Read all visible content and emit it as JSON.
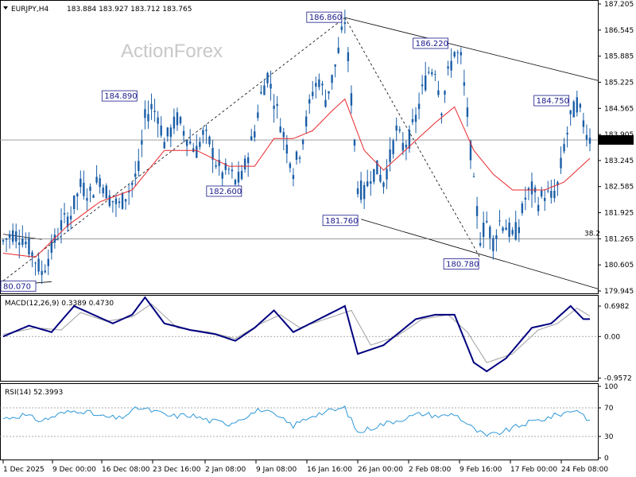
{
  "header": {
    "symbol_tf": "EURJPY,H4",
    "ohlc": "183.884 183.927 183.712 183.765"
  },
  "watermark": "ActionForex",
  "colors": {
    "candles": "#1a5ea8",
    "ma": "#e8282d",
    "macd": "#00007f",
    "signal": "#a0a0a0",
    "rsi": "#2e98d8",
    "lines": "#000000",
    "callout_text": "#1a1a8c"
  },
  "chart_data": [
    {
      "type": "candlestick",
      "title": "EURJPY,H4",
      "ylim": [
        179.945,
        187.205
      ],
      "y_ticks": [
        "187.205",
        "186.545",
        "185.885",
        "185.225",
        "184.565",
        "183.905",
        "183.245",
        "182.585",
        "181.925",
        "181.265",
        "180.605",
        "179.945"
      ],
      "current_price": "183.765",
      "x_ticks": [
        "1 Dec 2025",
        "9 Dec 00:00",
        "16 Dec 08:00",
        "23 Dec 16:00",
        "2 Jan 08:00",
        "9 Jan 08:00",
        "16 Jan 16:00",
        "26 Jan 00:00",
        "2 Feb 08:00",
        "9 Feb 16:00",
        "17 Feb 00:00",
        "24 Feb 08:00"
      ],
      "price_path": [
        [
          0,
          181.2
        ],
        [
          3,
          181.4
        ],
        [
          6,
          181.3
        ],
        [
          9,
          180.9
        ],
        [
          12,
          180.4
        ],
        [
          15,
          181.0
        ],
        [
          18,
          181.6
        ],
        [
          21,
          181.9
        ],
        [
          24,
          182.6
        ],
        [
          27,
          182.4
        ],
        [
          30,
          182.8
        ],
        [
          33,
          182.3
        ],
        [
          36,
          182.1
        ],
        [
          39,
          182.5
        ],
        [
          42,
          183.0
        ],
        [
          44,
          184.3
        ],
        [
          46,
          184.6
        ],
        [
          48,
          184.4
        ],
        [
          50,
          183.7
        ],
        [
          52,
          184.0
        ],
        [
          54,
          184.3
        ],
        [
          56,
          184.0
        ],
        [
          58,
          183.7
        ],
        [
          60,
          183.5
        ],
        [
          62,
          183.9
        ],
        [
          64,
          183.7
        ],
        [
          66,
          183.2
        ],
        [
          68,
          182.9
        ],
        [
          70,
          183.0
        ],
        [
          72,
          182.7
        ],
        [
          74,
          182.8
        ],
        [
          76,
          183.4
        ],
        [
          78,
          184.0
        ],
        [
          80,
          184.9
        ],
        [
          82,
          185.4
        ],
        [
          84,
          184.8
        ],
        [
          86,
          184.2
        ],
        [
          88,
          183.6
        ],
        [
          90,
          183.0
        ],
        [
          92,
          183.5
        ],
        [
          94,
          184.2
        ],
        [
          96,
          185.0
        ],
        [
          98,
          185.3
        ],
        [
          100,
          184.8
        ],
        [
          102,
          185.3
        ],
        [
          104,
          186.0
        ],
        [
          106,
          186.8
        ],
        [
          108,
          184.8
        ],
        [
          110,
          182.6
        ],
        [
          112,
          182.4
        ],
        [
          114,
          182.9
        ],
        [
          116,
          183.0
        ],
        [
          118,
          182.7
        ],
        [
          120,
          183.3
        ],
        [
          122,
          184.0
        ],
        [
          124,
          183.6
        ],
        [
          126,
          183.8
        ],
        [
          128,
          184.3
        ],
        [
          130,
          185.0
        ],
        [
          132,
          185.5
        ],
        [
          134,
          185.6
        ],
        [
          136,
          184.6
        ],
        [
          138,
          185.4
        ],
        [
          140,
          186.0
        ],
        [
          142,
          185.8
        ],
        [
          144,
          184.4
        ],
        [
          146,
          182.6
        ],
        [
          148,
          181.3
        ],
        [
          150,
          181.7
        ],
        [
          152,
          181.2
        ],
        [
          154,
          181.7
        ],
        [
          156,
          181.6
        ],
        [
          158,
          181.3
        ],
        [
          160,
          181.6
        ],
        [
          162,
          182.3
        ],
        [
          164,
          182.5
        ],
        [
          166,
          182.2
        ],
        [
          168,
          182.4
        ],
        [
          170,
          182.3
        ],
        [
          172,
          182.6
        ],
        [
          174,
          183.6
        ],
        [
          176,
          184.3
        ],
        [
          178,
          184.7
        ],
        [
          180,
          184.2
        ],
        [
          182,
          183.8
        ]
      ],
      "moving_average": [
        [
          0,
          180.9
        ],
        [
          10,
          180.8
        ],
        [
          20,
          181.6
        ],
        [
          30,
          182.2
        ],
        [
          40,
          182.5
        ],
        [
          50,
          183.5
        ],
        [
          60,
          183.5
        ],
        [
          70,
          183.1
        ],
        [
          78,
          183.1
        ],
        [
          84,
          183.8
        ],
        [
          90,
          183.8
        ],
        [
          96,
          184.0
        ],
        [
          102,
          184.5
        ],
        [
          106,
          184.8
        ],
        [
          112,
          183.5
        ],
        [
          118,
          183.0
        ],
        [
          126,
          183.6
        ],
        [
          134,
          184.2
        ],
        [
          140,
          184.6
        ],
        [
          146,
          183.5
        ],
        [
          152,
          182.9
        ],
        [
          158,
          182.5
        ],
        [
          162,
          182.5
        ],
        [
          168,
          182.5
        ],
        [
          174,
          182.7
        ],
        [
          182,
          183.3
        ]
      ],
      "annotations": [
        {
          "text": "186.860",
          "x": 106,
          "y": 186.86
        },
        {
          "text": "186.220",
          "x": 139,
          "y": 186.22
        },
        {
          "text": "184.890",
          "x": 42,
          "y": 184.89
        },
        {
          "text": "184.750",
          "x": 176,
          "y": 184.75
        },
        {
          "text": "182.600",
          "x": 70,
          "y": 182.6
        },
        {
          "text": "181.760",
          "x": 111,
          "y": 181.76
        },
        {
          "text": "180.780",
          "x": 148,
          "y": 180.78
        },
        {
          "text": "80.070",
          "x": 0,
          "y": 180.07
        }
      ],
      "horizontal_line": {
        "value": 181.265,
        "label": "38.2"
      }
    },
    {
      "type": "line",
      "title": "MACD(12,26,9) 0.3389 0.4730",
      "ylim": [
        -1.0,
        0.9
      ],
      "y_ticks": [
        "0.6982",
        "0.00",
        "-0.9572"
      ],
      "macd": [
        [
          0,
          0.0
        ],
        [
          8,
          0.25
        ],
        [
          15,
          0.1
        ],
        [
          22,
          0.7
        ],
        [
          28,
          0.5
        ],
        [
          34,
          0.3
        ],
        [
          40,
          0.5
        ],
        [
          44,
          0.9
        ],
        [
          50,
          0.3
        ],
        [
          58,
          0.15
        ],
        [
          66,
          0.05
        ],
        [
          72,
          -0.1
        ],
        [
          78,
          0.2
        ],
        [
          84,
          0.6
        ],
        [
          90,
          0.1
        ],
        [
          98,
          0.4
        ],
        [
          106,
          0.7
        ],
        [
          110,
          -0.4
        ],
        [
          118,
          -0.2
        ],
        [
          128,
          0.4
        ],
        [
          134,
          0.5
        ],
        [
          140,
          0.5
        ],
        [
          146,
          -0.6
        ],
        [
          150,
          -0.8
        ],
        [
          156,
          -0.5
        ],
        [
          164,
          0.2
        ],
        [
          170,
          0.3
        ],
        [
          176,
          0.7
        ],
        [
          180,
          0.4
        ]
      ],
      "signal": [
        [
          0,
          0.05
        ],
        [
          10,
          0.2
        ],
        [
          18,
          0.15
        ],
        [
          24,
          0.55
        ],
        [
          32,
          0.35
        ],
        [
          40,
          0.45
        ],
        [
          46,
          0.75
        ],
        [
          54,
          0.2
        ],
        [
          64,
          0.1
        ],
        [
          72,
          -0.05
        ],
        [
          80,
          0.3
        ],
        [
          86,
          0.5
        ],
        [
          92,
          0.2
        ],
        [
          100,
          0.4
        ],
        [
          108,
          0.6
        ],
        [
          114,
          -0.2
        ],
        [
          122,
          0.0
        ],
        [
          130,
          0.4
        ],
        [
          138,
          0.5
        ],
        [
          144,
          0.1
        ],
        [
          150,
          -0.6
        ],
        [
          158,
          -0.4
        ],
        [
          166,
          0.15
        ],
        [
          172,
          0.3
        ],
        [
          178,
          0.65
        ],
        [
          182,
          0.47
        ]
      ]
    },
    {
      "type": "line",
      "title": "RSI(14) 52.3993",
      "ylim": [
        0,
        100
      ],
      "y_ticks": [
        "100",
        "70",
        "30",
        "0"
      ],
      "levels": [
        70,
        30
      ],
      "values": [
        [
          0,
          55
        ],
        [
          6,
          60
        ],
        [
          12,
          52
        ],
        [
          18,
          62
        ],
        [
          24,
          67
        ],
        [
          30,
          58
        ],
        [
          36,
          55
        ],
        [
          42,
          70
        ],
        [
          46,
          66
        ],
        [
          52,
          58
        ],
        [
          58,
          60
        ],
        [
          64,
          52
        ],
        [
          70,
          48
        ],
        [
          76,
          60
        ],
        [
          80,
          68
        ],
        [
          86,
          55
        ],
        [
          90,
          45
        ],
        [
          96,
          60
        ],
        [
          102,
          66
        ],
        [
          106,
          70
        ],
        [
          110,
          35
        ],
        [
          116,
          45
        ],
        [
          124,
          55
        ],
        [
          130,
          62
        ],
        [
          136,
          58
        ],
        [
          140,
          62
        ],
        [
          146,
          40
        ],
        [
          150,
          30
        ],
        [
          156,
          38
        ],
        [
          162,
          48
        ],
        [
          168,
          55
        ],
        [
          174,
          63
        ],
        [
          178,
          68
        ],
        [
          182,
          52
        ]
      ]
    }
  ]
}
